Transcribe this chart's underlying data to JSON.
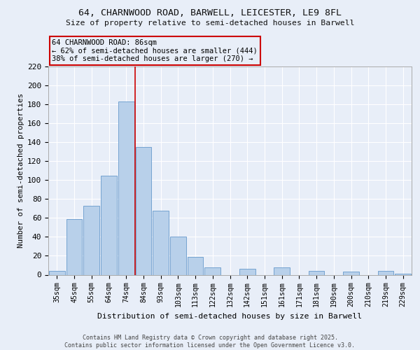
{
  "title1": "64, CHARNWOOD ROAD, BARWELL, LEICESTER, LE9 8FL",
  "title2": "Size of property relative to semi-detached houses in Barwell",
  "xlabel": "Distribution of semi-detached houses by size in Barwell",
  "ylabel": "Number of semi-detached properties",
  "categories": [
    "35sqm",
    "45sqm",
    "55sqm",
    "64sqm",
    "74sqm",
    "84sqm",
    "93sqm",
    "103sqm",
    "113sqm",
    "122sqm",
    "132sqm",
    "142sqm",
    "151sqm",
    "161sqm",
    "171sqm",
    "181sqm",
    "190sqm",
    "200sqm",
    "210sqm",
    "219sqm",
    "229sqm"
  ],
  "values": [
    4,
    59,
    73,
    105,
    183,
    135,
    68,
    40,
    19,
    8,
    0,
    6,
    0,
    8,
    0,
    4,
    0,
    3,
    0,
    4,
    1
  ],
  "bar_color": "#b8d0ea",
  "bar_edge_color": "#6699cc",
  "bg_color": "#e8eef8",
  "grid_color": "#ffffff",
  "vline_x_index": 4,
  "vline_color": "#cc0000",
  "annotation_text": "64 CHARNWOOD ROAD: 86sqm\n← 62% of semi-detached houses are smaller (444)\n38% of semi-detached houses are larger (270) →",
  "annotation_box_edge": "#cc0000",
  "ylim": [
    0,
    220
  ],
  "yticks": [
    0,
    20,
    40,
    60,
    80,
    100,
    120,
    140,
    160,
    180,
    200,
    220
  ],
  "footer1": "Contains HM Land Registry data © Crown copyright and database right 2025.",
  "footer2": "Contains public sector information licensed under the Open Government Licence v3.0."
}
